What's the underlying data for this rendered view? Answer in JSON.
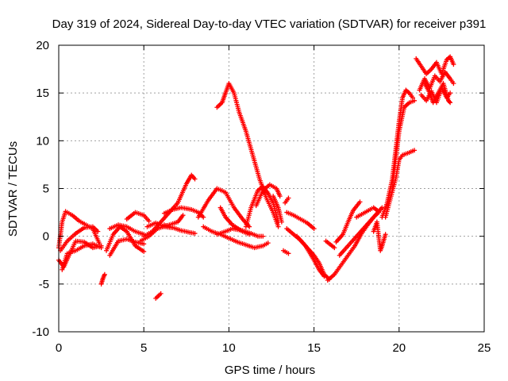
{
  "chart_data": {
    "type": "scatter",
    "title": "Day 319 of 2024, Sidereal Day-to-day VTEC variation (SDTVAR) for receiver p391",
    "xlabel": "GPS time / hours",
    "ylabel": "SDTVAR / TECUs",
    "xlim": [
      0,
      25
    ],
    "ylim": [
      -10,
      20
    ],
    "xticks": [
      "0",
      "5",
      "10",
      "15",
      "20",
      "25"
    ],
    "yticks": [
      "-10",
      "-5",
      "0",
      "5",
      "10",
      "15",
      "20"
    ],
    "grid": true,
    "marker": "+",
    "color": "#ff0000",
    "tracks": [
      [
        [
          0.0,
          -1.2
        ],
        [
          0.2,
          1.5
        ],
        [
          0.4,
          2.6
        ],
        [
          0.8,
          2.2
        ],
        [
          1.2,
          1.6
        ],
        [
          1.6,
          1.2
        ],
        [
          2.0,
          0.8
        ],
        [
          2.4,
          -0.8
        ]
      ],
      [
        [
          0.0,
          -2.5
        ],
        [
          0.3,
          -3.2
        ],
        [
          0.6,
          -2.0
        ],
        [
          1.0,
          -0.5
        ],
        [
          1.5,
          -0.6
        ],
        [
          2.0,
          -1.2
        ],
        [
          2.5,
          -1.0
        ]
      ],
      [
        [
          0.1,
          -1.5
        ],
        [
          0.5,
          -0.5
        ],
        [
          1.0,
          0.3
        ],
        [
          1.5,
          0.9
        ],
        [
          2.0,
          1.0
        ],
        [
          2.3,
          0.5
        ]
      ],
      [
        [
          0.2,
          -3.5
        ],
        [
          0.5,
          -1.8
        ],
        [
          1.0,
          -1.5
        ],
        [
          1.5,
          -1.0
        ],
        [
          2.0,
          -0.8
        ],
        [
          2.5,
          -1.2
        ]
      ],
      [
        [
          2.5,
          -5.0
        ],
        [
          2.6,
          -4.4
        ],
        [
          2.7,
          -4.0
        ]
      ],
      [
        [
          2.8,
          -1.5
        ],
        [
          3.2,
          0.2
        ],
        [
          3.6,
          1.0
        ],
        [
          4.0,
          0.5
        ],
        [
          4.5,
          -1.0
        ],
        [
          5.0,
          -1.6
        ]
      ],
      [
        [
          3.0,
          -2.0
        ],
        [
          3.5,
          -0.5
        ],
        [
          4.0,
          -0.3
        ],
        [
          4.5,
          -0.6
        ],
        [
          5.0,
          -0.8
        ]
      ],
      [
        [
          3.0,
          0.8
        ],
        [
          3.5,
          1.2
        ],
        [
          4.0,
          1.0
        ],
        [
          4.5,
          0.5
        ],
        [
          5.0,
          0.2
        ]
      ],
      [
        [
          4.0,
          1.8
        ],
        [
          4.5,
          2.5
        ],
        [
          5.0,
          2.2
        ],
        [
          5.3,
          1.6
        ]
      ],
      [
        [
          4.8,
          -0.5
        ],
        [
          5.3,
          0.0
        ],
        [
          5.8,
          0.8
        ],
        [
          6.5,
          1.2
        ],
        [
          7.0,
          1.5
        ],
        [
          7.3,
          2.2
        ]
      ],
      [
        [
          5.0,
          0.0
        ],
        [
          5.5,
          0.5
        ],
        [
          6.0,
          1.5
        ],
        [
          6.5,
          2.5
        ],
        [
          7.0,
          3.5
        ],
        [
          7.5,
          5.5
        ],
        [
          7.8,
          6.4
        ],
        [
          8.0,
          6.0
        ]
      ],
      [
        [
          5.2,
          1.0
        ],
        [
          5.7,
          1.4
        ],
        [
          6.2,
          1.0
        ],
        [
          6.6,
          0.9
        ]
      ],
      [
        [
          5.7,
          -6.5
        ],
        [
          6.0,
          -6.0
        ]
      ],
      [
        [
          6.2,
          2.4
        ],
        [
          6.7,
          2.8
        ],
        [
          7.2,
          3.0
        ],
        [
          7.8,
          2.8
        ],
        [
          8.2,
          2.5
        ],
        [
          8.5,
          2.0
        ]
      ],
      [
        [
          6.2,
          1.2
        ],
        [
          6.7,
          0.9
        ],
        [
          7.2,
          0.6
        ],
        [
          7.7,
          0.4
        ],
        [
          8.0,
          0.3
        ]
      ],
      [
        [
          8.2,
          2.0
        ],
        [
          8.8,
          3.8
        ],
        [
          9.3,
          5.0
        ],
        [
          9.8,
          4.6
        ],
        [
          10.3,
          3.0
        ],
        [
          10.8,
          1.8
        ],
        [
          11.2,
          1.0
        ]
      ],
      [
        [
          8.5,
          1.0
        ],
        [
          9.0,
          0.5
        ],
        [
          9.5,
          0.2
        ],
        [
          10.0,
          -0.2
        ],
        [
          10.5,
          -0.6
        ],
        [
          11.0,
          -0.9
        ],
        [
          11.5,
          -1.2
        ],
        [
          12.0,
          -1.0
        ],
        [
          12.3,
          -0.7
        ]
      ],
      [
        [
          9.3,
          0.2
        ],
        [
          9.8,
          0.5
        ],
        [
          10.2,
          0.8
        ],
        [
          10.8,
          0.6
        ],
        [
          11.3,
          0.3
        ],
        [
          11.7,
          0.0
        ],
        [
          12.0,
          0.0
        ]
      ],
      [
        [
          9.5,
          3.0
        ],
        [
          9.8,
          2.0
        ],
        [
          10.2,
          1.2
        ],
        [
          10.8,
          0.5
        ],
        [
          11.2,
          0.2
        ]
      ],
      [
        [
          9.3,
          13.5
        ],
        [
          9.6,
          14.0
        ],
        [
          9.8,
          15.0
        ],
        [
          10.0,
          16.0
        ],
        [
          10.3,
          15.0
        ],
        [
          10.6,
          13.0
        ],
        [
          11.0,
          11.0
        ],
        [
          11.4,
          8.5
        ],
        [
          11.8,
          6.0
        ],
        [
          12.2,
          4.0
        ],
        [
          12.6,
          2.5
        ],
        [
          12.9,
          1.0
        ]
      ],
      [
        [
          11.0,
          1.0
        ],
        [
          11.3,
          3.0
        ],
        [
          11.7,
          4.8
        ],
        [
          12.0,
          5.2
        ],
        [
          12.3,
          4.5
        ],
        [
          12.6,
          3.5
        ],
        [
          12.9,
          1.5
        ]
      ],
      [
        [
          11.6,
          3.2
        ],
        [
          12.0,
          4.8
        ],
        [
          12.4,
          5.4
        ],
        [
          12.8,
          5.0
        ],
        [
          13.0,
          4.2
        ]
      ],
      [
        [
          12.6,
          4.2
        ],
        [
          12.9,
          3.0
        ],
        [
          13.1,
          1.5
        ]
      ],
      [
        [
          13.3,
          3.5
        ],
        [
          13.5,
          4.0
        ]
      ],
      [
        [
          13.2,
          -1.5
        ],
        [
          13.5,
          -1.8
        ]
      ],
      [
        [
          13.4,
          2.5
        ],
        [
          13.8,
          2.2
        ],
        [
          14.2,
          1.8
        ],
        [
          14.6,
          1.4
        ],
        [
          15.0,
          0.8
        ]
      ],
      [
        [
          13.4,
          0.8
        ],
        [
          13.8,
          0.2
        ],
        [
          14.2,
          -0.4
        ],
        [
          14.6,
          -1.2
        ],
        [
          15.0,
          -2.0
        ],
        [
          15.3,
          -2.8
        ],
        [
          15.6,
          -4.0
        ],
        [
          15.9,
          -4.5
        ]
      ],
      [
        [
          14.0,
          0.0
        ],
        [
          14.5,
          -1.0
        ],
        [
          15.0,
          -2.5
        ],
        [
          15.3,
          -3.5
        ],
        [
          15.6,
          -4.2
        ]
      ],
      [
        [
          15.8,
          -4.6
        ],
        [
          16.2,
          -4.0
        ],
        [
          16.6,
          -3.0
        ],
        [
          17.0,
          -2.0
        ],
        [
          17.4,
          -1.0
        ],
        [
          17.8,
          0.3
        ],
        [
          18.2,
          1.3
        ],
        [
          18.6,
          2.2
        ],
        [
          19.0,
          3.0
        ]
      ],
      [
        [
          16.3,
          -0.6
        ],
        [
          16.7,
          0.2
        ],
        [
          17.0,
          1.5
        ],
        [
          17.3,
          2.7
        ],
        [
          17.7,
          3.6
        ]
      ],
      [
        [
          16.5,
          -2.0
        ],
        [
          17.0,
          -1.0
        ],
        [
          17.5,
          0.0
        ],
        [
          18.0,
          1.0
        ],
        [
          18.5,
          2.0
        ],
        [
          18.8,
          2.5
        ]
      ],
      [
        [
          15.7,
          -0.5
        ],
        [
          16.2,
          -1.2
        ]
      ],
      [
        [
          17.5,
          2.0
        ],
        [
          18.0,
          2.5
        ],
        [
          18.5,
          3.0
        ],
        [
          18.8,
          2.6
        ]
      ],
      [
        [
          18.5,
          0.5
        ],
        [
          18.7,
          1.5
        ],
        [
          18.9,
          -1.5
        ],
        [
          19.0,
          -1.0
        ],
        [
          19.2,
          0.2
        ]
      ],
      [
        [
          19.2,
          2.0
        ],
        [
          19.5,
          4.0
        ],
        [
          19.8,
          6.0
        ],
        [
          20.0,
          8.0
        ],
        [
          20.2,
          8.5
        ],
        [
          20.5,
          8.7
        ],
        [
          20.9,
          9.0
        ]
      ],
      [
        [
          19.0,
          2.0
        ],
        [
          19.3,
          3.5
        ],
        [
          19.6,
          6.0
        ],
        [
          19.8,
          9.0
        ],
        [
          20.0,
          12.0
        ],
        [
          20.2,
          14.5
        ],
        [
          20.4,
          15.3
        ],
        [
          20.6,
          15.0
        ],
        [
          20.8,
          14.5
        ]
      ],
      [
        [
          19.6,
          5.0
        ],
        [
          19.8,
          8.0
        ],
        [
          20.0,
          11.0
        ],
        [
          20.3,
          13.5
        ],
        [
          20.6,
          14.0
        ],
        [
          20.9,
          14.2
        ]
      ],
      [
        [
          21.0,
          18.6
        ],
        [
          21.3,
          17.8
        ],
        [
          21.6,
          17.0
        ],
        [
          21.9,
          17.5
        ],
        [
          22.2,
          18.2
        ],
        [
          22.5,
          17.0
        ],
        [
          22.8,
          18.5
        ],
        [
          23.0,
          18.8
        ],
        [
          23.2,
          18.0
        ]
      ],
      [
        [
          21.2,
          15.3
        ],
        [
          21.5,
          16.5
        ],
        [
          21.8,
          15.5
        ],
        [
          22.1,
          16.8
        ],
        [
          22.4,
          16.2
        ],
        [
          22.7,
          17.2
        ],
        [
          23.0,
          16.5
        ],
        [
          23.2,
          16.0
        ]
      ],
      [
        [
          21.3,
          14.8
        ],
        [
          21.6,
          14.2
        ],
        [
          21.9,
          15.2
        ],
        [
          22.2,
          14.0
        ],
        [
          22.5,
          15.5
        ],
        [
          22.8,
          14.5
        ],
        [
          23.0,
          15.0
        ]
      ],
      [
        [
          21.5,
          16.0
        ],
        [
          21.8,
          15.0
        ],
        [
          22.0,
          14.0
        ],
        [
          22.3,
          15.0
        ],
        [
          22.6,
          16.0
        ],
        [
          22.9,
          14.2
        ],
        [
          23.0,
          14.0
        ]
      ]
    ]
  }
}
